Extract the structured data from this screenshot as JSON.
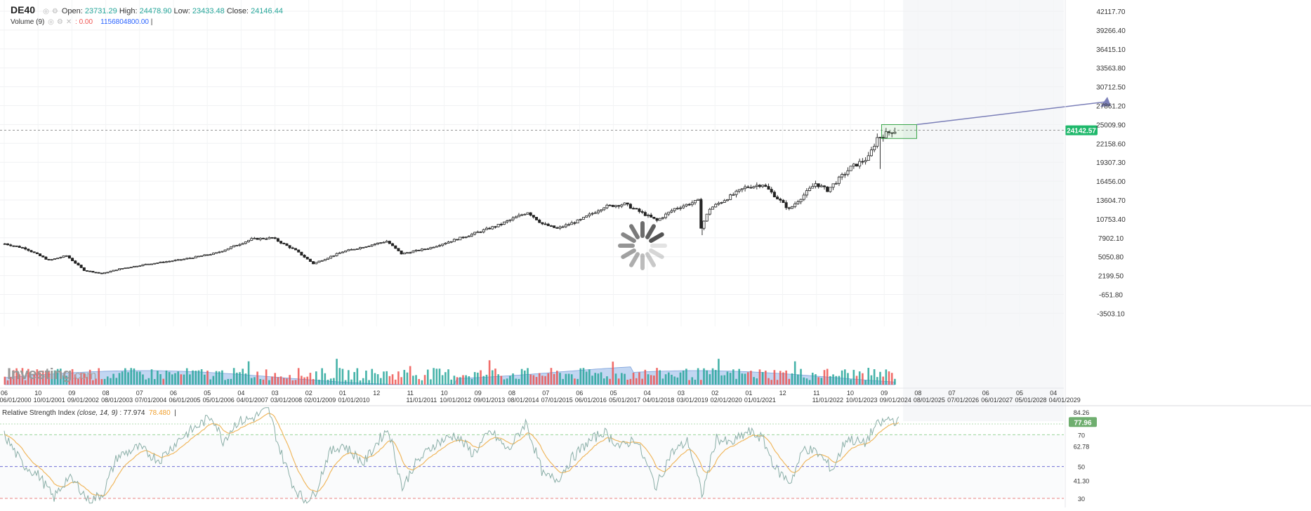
{
  "symbol": "DE40",
  "ohlc_legend": {
    "open_label": "Open:",
    "open": "23731.29",
    "high_label": "High:",
    "high": "24478.90",
    "low_label": "Low:",
    "low": "23433.48",
    "close_label": "Close:",
    "close": "24146.44"
  },
  "volume_legend": {
    "label": "Volume (9)",
    "value1": ": 0.00",
    "value2": "1156804800.00"
  },
  "rsi_legend": {
    "label": "Relative Strength Index",
    "params": "(close, 14, 9)",
    "value1": ": 77.974",
    "value2": "78.480"
  },
  "watermark": {
    "brand": "Investing",
    "suffix": ".com"
  },
  "colors": {
    "up": "#26a69a",
    "down": "#ef5350",
    "volume_area": "#90b4e8",
    "rsi_line": "#8aaea7",
    "rsi_ma": "#f0b860",
    "price_tag": "#1fb86b",
    "arrow": "#7b7fb8"
  },
  "chart_data": {
    "type": "candlestick",
    "price_axis_ticks": [
      "42117.70",
      "39266.40",
      "36415.10",
      "33563.80",
      "30712.50",
      "27861.20",
      "25009.90",
      "22158.60",
      "19307.30",
      "16456.00",
      "13604.70",
      "10753.40",
      "7902.10",
      "5050.80",
      "2199.50",
      "-651.80",
      "-3503.10"
    ],
    "last_price": "24142.57",
    "time_axis_ticks": [
      {
        "top": "06",
        "bottom": "06/01/2000"
      },
      {
        "top": "10",
        "bottom": "10/01/2001"
      },
      {
        "top": "09",
        "bottom": "09/01/2002"
      },
      {
        "top": "08",
        "bottom": "08/01/2003"
      },
      {
        "top": "07",
        "bottom": "07/01/2004"
      },
      {
        "top": "06",
        "bottom": "06/01/2005"
      },
      {
        "top": "05",
        "bottom": "05/01/2006"
      },
      {
        "top": "04",
        "bottom": "04/01/2007"
      },
      {
        "top": "03",
        "bottom": "03/01/2008"
      },
      {
        "top": "02",
        "bottom": "02/01/2009"
      },
      {
        "top": "01",
        "bottom": "01/01/2010"
      },
      {
        "top": "12",
        "bottom": ""
      },
      {
        "top": "11",
        "bottom": "11/01/2011"
      },
      {
        "top": "10",
        "bottom": "10/01/2012"
      },
      {
        "top": "09",
        "bottom": "09/01/2013"
      },
      {
        "top": "08",
        "bottom": "08/01/2014"
      },
      {
        "top": "07",
        "bottom": "07/01/2015"
      },
      {
        "top": "06",
        "bottom": "06/01/2016"
      },
      {
        "top": "05",
        "bottom": "05/01/2017"
      },
      {
        "top": "04",
        "bottom": "04/01/2018"
      },
      {
        "top": "03",
        "bottom": "03/01/2019"
      },
      {
        "top": "02",
        "bottom": "02/01/2020"
      },
      {
        "top": "01",
        "bottom": "01/01/2021"
      },
      {
        "top": "12",
        "bottom": ""
      },
      {
        "top": "11",
        "bottom": "11/01/2022"
      },
      {
        "top": "10",
        "bottom": "10/01/2023"
      },
      {
        "top": "09",
        "bottom": "09/01/2024"
      },
      {
        "top": "08",
        "bottom": "08/01/2025"
      },
      {
        "top": "07",
        "bottom": "07/01/2026"
      },
      {
        "top": "06",
        "bottom": "06/01/2027"
      },
      {
        "top": "05",
        "bottom": "05/01/2028"
      },
      {
        "top": "04",
        "bottom": "04/01/2029"
      }
    ],
    "price_path": [
      [
        "2000-06",
        7000
      ],
      [
        "2001-01",
        6300
      ],
      [
        "2001-09",
        4500
      ],
      [
        "2002-03",
        5200
      ],
      [
        "2002-09",
        3000
      ],
      [
        "2003-03",
        2500
      ],
      [
        "2003-09",
        3200
      ],
      [
        "2004-06",
        3900
      ],
      [
        "2005-06",
        4600
      ],
      [
        "2006-06",
        5600
      ],
      [
        "2007-06",
        7700
      ],
      [
        "2008-01",
        7900
      ],
      [
        "2008-09",
        6000
      ],
      [
        "2009-03",
        4000
      ],
      [
        "2010-01",
        5800
      ],
      [
        "2011-04",
        7400
      ],
      [
        "2011-09",
        5500
      ],
      [
        "2012-06",
        6300
      ],
      [
        "2013-06",
        8000
      ],
      [
        "2014-06",
        9800
      ],
      [
        "2015-04",
        11800
      ],
      [
        "2015-09",
        10000
      ],
      [
        "2016-02",
        9300
      ],
      [
        "2016-10",
        10600
      ],
      [
        "2017-06",
        12600
      ],
      [
        "2018-01",
        13000
      ],
      [
        "2018-12",
        10500
      ],
      [
        "2019-06",
        12300
      ],
      [
        "2020-02",
        13500
      ],
      [
        "2020-03",
        9500
      ],
      [
        "2020-06",
        12300
      ],
      [
        "2021-06",
        15500
      ],
      [
        "2021-12",
        16000
      ],
      [
        "2022-09",
        12200
      ],
      [
        "2023-06",
        16100
      ],
      [
        "2023-10",
        15100
      ],
      [
        "2024-06",
        18500
      ],
      [
        "2024-12",
        20000
      ],
      [
        "2025-03",
        23000
      ],
      [
        "2025-08",
        24000
      ],
      [
        "2025-10",
        24146
      ]
    ],
    "rsi_axis_ticks": [
      "84.26",
      "70",
      "62.78",
      "50",
      "41.30",
      "30"
    ],
    "rsi_last": "77.96",
    "rsi_path": [
      [
        2000.4,
        70
      ],
      [
        2000.9,
        52
      ],
      [
        2001.4,
        44
      ],
      [
        2001.8,
        30
      ],
      [
        2002.2,
        43
      ],
      [
        2002.5,
        38
      ],
      [
        2002.8,
        28
      ],
      [
        2003.2,
        33
      ],
      [
        2003.6,
        56
      ],
      [
        2004.2,
        62
      ],
      [
        2004.8,
        54
      ],
      [
        2005.4,
        68
      ],
      [
        2005.8,
        74
      ],
      [
        2006.3,
        82
      ],
      [
        2006.6,
        66
      ],
      [
        2007.0,
        78
      ],
      [
        2007.4,
        80
      ],
      [
        2007.9,
        86
      ],
      [
        2008.2,
        62
      ],
      [
        2008.6,
        38
      ],
      [
        2008.9,
        29
      ],
      [
        2009.2,
        32
      ],
      [
        2009.6,
        58
      ],
      [
        2010.0,
        64
      ],
      [
        2010.6,
        52
      ],
      [
        2011.0,
        66
      ],
      [
        2011.3,
        74
      ],
      [
        2011.7,
        36
      ],
      [
        2012.0,
        50
      ],
      [
        2012.6,
        64
      ],
      [
        2013.2,
        70
      ],
      [
        2013.7,
        58
      ],
      [
        2014.2,
        72
      ],
      [
        2014.7,
        60
      ],
      [
        2015.2,
        78
      ],
      [
        2015.7,
        44
      ],
      [
        2016.1,
        42
      ],
      [
        2016.5,
        55
      ],
      [
        2016.9,
        64
      ],
      [
        2017.4,
        72
      ],
      [
        2017.9,
        62
      ],
      [
        2018.3,
        68
      ],
      [
        2018.9,
        37
      ],
      [
        2019.3,
        58
      ],
      [
        2019.8,
        66
      ],
      [
        2020.2,
        32
      ],
      [
        2020.6,
        68
      ],
      [
        2021.0,
        64
      ],
      [
        2021.5,
        72
      ],
      [
        2021.9,
        68
      ],
      [
        2022.3,
        48
      ],
      [
        2022.7,
        40
      ],
      [
        2023.1,
        62
      ],
      [
        2023.5,
        58
      ],
      [
        2023.9,
        48
      ],
      [
        2024.3,
        68
      ],
      [
        2024.8,
        64
      ],
      [
        2025.1,
        75
      ],
      [
        2025.5,
        80
      ],
      [
        2025.8,
        78
      ]
    ]
  }
}
